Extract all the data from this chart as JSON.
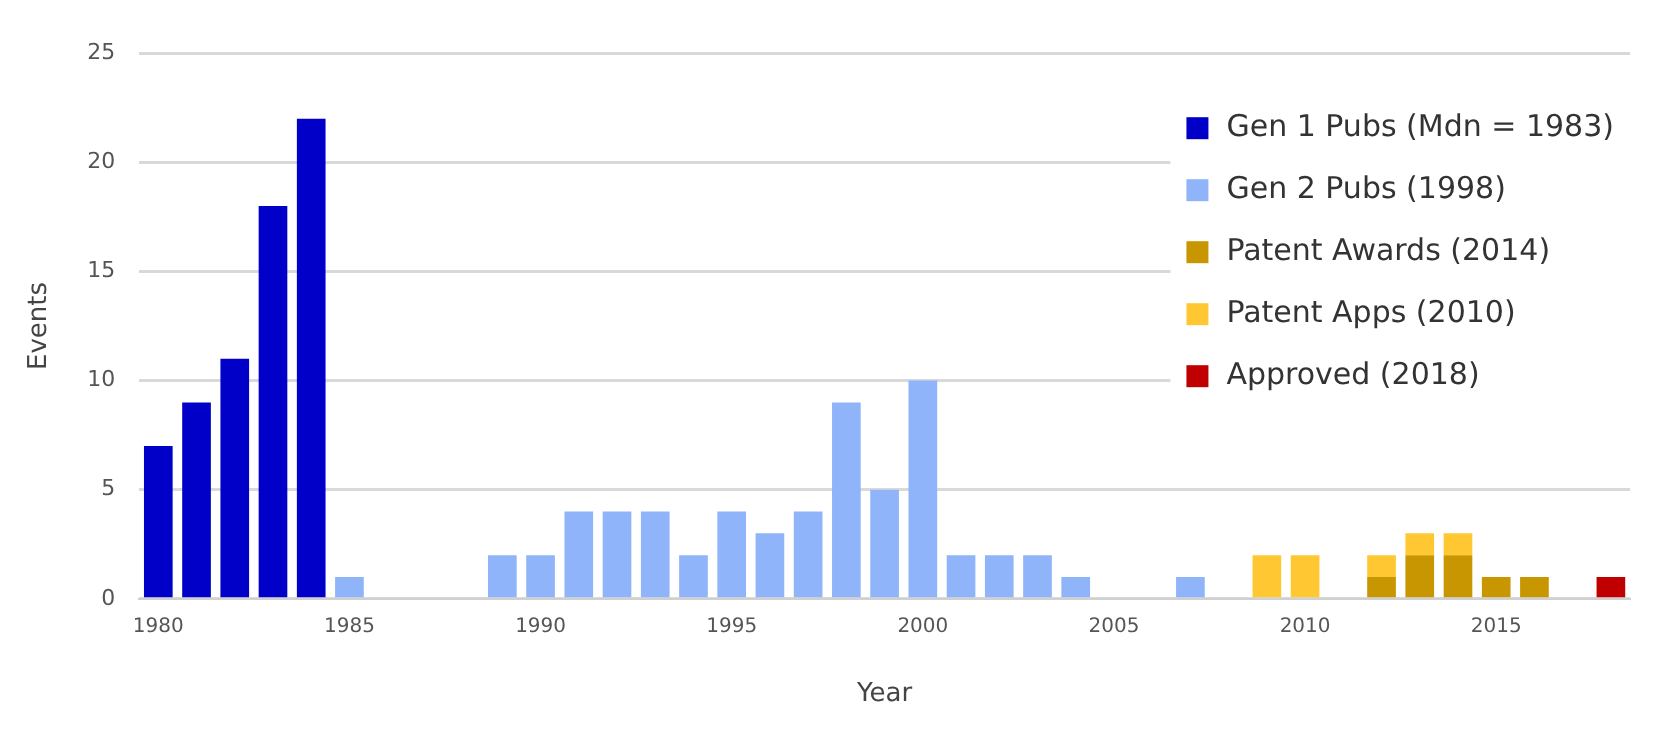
{
  "chart_data": {
    "type": "bar",
    "stacked": true,
    "xlabel": "Year",
    "ylabel": "Events",
    "xlim": [
      1979.5,
      2018.5
    ],
    "xticks": [
      1980,
      1985,
      1990,
      1995,
      2000,
      2005,
      2010,
      2015
    ],
    "ylim": [
      0,
      25
    ],
    "yticks": [
      0,
      5,
      10,
      15,
      20,
      25
    ],
    "grid": "y",
    "legend": "top right",
    "x": [
      1980,
      1981,
      1982,
      1983,
      1984,
      1985,
      1986,
      1987,
      1988,
      1989,
      1990,
      1991,
      1992,
      1993,
      1994,
      1995,
      1996,
      1997,
      1998,
      1999,
      2000,
      2001,
      2002,
      2003,
      2004,
      2005,
      2006,
      2007,
      2008,
      2009,
      2010,
      2011,
      2012,
      2013,
      2014,
      2015,
      2016,
      2017,
      2018
    ],
    "series": [
      {
        "name": "Gen 1 Pubs (Mdn = 1983)",
        "color": "#0000c8",
        "values": [
          7,
          9,
          11,
          18,
          22,
          null,
          null,
          null,
          null,
          null,
          null,
          null,
          null,
          null,
          null,
          null,
          null,
          null,
          null,
          null,
          null,
          null,
          null,
          null,
          null,
          null,
          null,
          null,
          null,
          null,
          null,
          null,
          null,
          null,
          null,
          null,
          null,
          null,
          null
        ]
      },
      {
        "name": "Gen 2 Pubs (1998)",
        "color": "#8fb4f9",
        "values": [
          null,
          null,
          null,
          null,
          null,
          1,
          null,
          null,
          null,
          2,
          2,
          4,
          4,
          4,
          2,
          4,
          3,
          4,
          9,
          5,
          10,
          2,
          2,
          2,
          1,
          null,
          null,
          1,
          null,
          null,
          null,
          null,
          null,
          null,
          null,
          null,
          null,
          null,
          null
        ]
      },
      {
        "name": "Patent Awards (2014)",
        "color": "#c89600",
        "values": [
          null,
          null,
          null,
          null,
          null,
          null,
          null,
          null,
          null,
          null,
          null,
          null,
          null,
          null,
          null,
          null,
          null,
          null,
          null,
          null,
          null,
          null,
          null,
          null,
          null,
          null,
          null,
          null,
          null,
          null,
          null,
          null,
          1,
          2,
          2,
          1,
          1,
          null,
          null
        ]
      },
      {
        "name": "Patent Apps (2010)",
        "color": "#ffc832",
        "values": [
          null,
          null,
          null,
          null,
          null,
          null,
          null,
          null,
          null,
          null,
          null,
          null,
          null,
          null,
          null,
          null,
          null,
          null,
          null,
          null,
          null,
          null,
          null,
          null,
          null,
          null,
          null,
          null,
          null,
          2,
          2,
          null,
          1,
          1,
          1,
          null,
          null,
          null,
          null
        ]
      },
      {
        "name": "Approved (2018)",
        "color": "#c00000",
        "values": [
          null,
          null,
          null,
          null,
          null,
          null,
          null,
          null,
          null,
          null,
          null,
          null,
          null,
          null,
          null,
          null,
          null,
          null,
          null,
          null,
          null,
          null,
          null,
          null,
          null,
          null,
          null,
          null,
          null,
          null,
          null,
          null,
          null,
          null,
          null,
          null,
          null,
          null,
          1
        ]
      }
    ]
  }
}
